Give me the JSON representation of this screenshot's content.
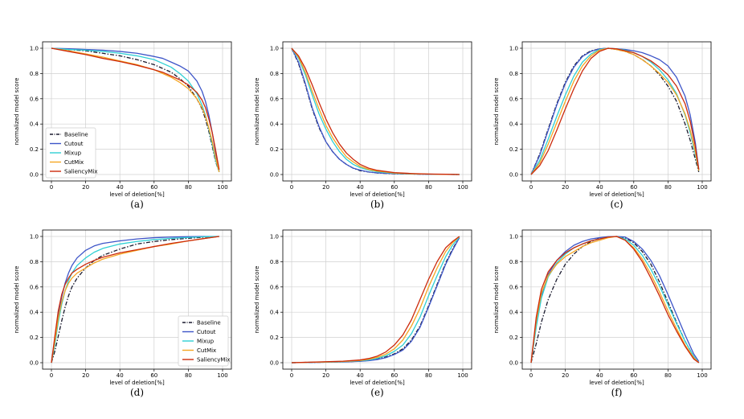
{
  "figure": {
    "colors": {
      "Baseline": "#1a1a2e",
      "Cutout": "#3d55c8",
      "Mixup": "#2fd0d4",
      "CutMix": "#f5a623",
      "SaliencyMix": "#cc2a0c"
    }
  },
  "chart_data": [
    {
      "panel": "a",
      "caption": "(a)",
      "type": "line",
      "xlabel": "level of deletion[%]",
      "ylabel": "normalized model score",
      "xlim": [
        0,
        100
      ],
      "ylim": [
        0,
        1.02
      ],
      "xticks": [
        "0",
        "20",
        "40",
        "60",
        "80",
        "100"
      ],
      "yticks": [
        "0.0",
        "0.2",
        "0.4",
        "0.6",
        "0.8",
        "1.0"
      ],
      "legend": "lower-left",
      "x": [
        0,
        10,
        20,
        30,
        40,
        50,
        60,
        65,
        70,
        75,
        80,
        85,
        88,
        90,
        92,
        94,
        96,
        98
      ],
      "series": [
        {
          "name": "Baseline",
          "style": "dashdot",
          "values": [
            1.0,
            0.99,
            0.98,
            0.96,
            0.94,
            0.91,
            0.87,
            0.84,
            0.81,
            0.76,
            0.7,
            0.6,
            0.52,
            0.44,
            0.34,
            0.22,
            0.1,
            0.02
          ]
        },
        {
          "name": "Cutout",
          "style": "solid",
          "values": [
            1.0,
            0.996,
            0.99,
            0.985,
            0.975,
            0.96,
            0.935,
            0.92,
            0.89,
            0.86,
            0.82,
            0.74,
            0.66,
            0.58,
            0.47,
            0.33,
            0.17,
            0.03
          ]
        },
        {
          "name": "Mixup",
          "style": "solid",
          "values": [
            1.0,
            0.99,
            0.985,
            0.975,
            0.96,
            0.94,
            0.91,
            0.88,
            0.85,
            0.8,
            0.74,
            0.64,
            0.55,
            0.47,
            0.36,
            0.24,
            0.11,
            0.02
          ]
        },
        {
          "name": "CutMix",
          "style": "solid",
          "values": [
            1.0,
            0.98,
            0.955,
            0.93,
            0.9,
            0.87,
            0.83,
            0.8,
            0.77,
            0.73,
            0.68,
            0.6,
            0.53,
            0.46,
            0.37,
            0.26,
            0.13,
            0.02
          ]
        },
        {
          "name": "SaliencyMix",
          "style": "solid",
          "values": [
            1.0,
            0.975,
            0.95,
            0.92,
            0.895,
            0.865,
            0.83,
            0.81,
            0.78,
            0.75,
            0.71,
            0.65,
            0.59,
            0.53,
            0.44,
            0.33,
            0.19,
            0.04
          ]
        }
      ]
    },
    {
      "panel": "b",
      "caption": "(b)",
      "type": "line",
      "xlabel": "level of deletion[%]",
      "ylabel": "normalized model score",
      "xlim": [
        0,
        100
      ],
      "ylim": [
        0,
        1.02
      ],
      "xticks": [
        "0",
        "20",
        "40",
        "60",
        "80",
        "100"
      ],
      "yticks": [
        "0.0",
        "0.2",
        "0.4",
        "0.6",
        "0.8",
        "1.0"
      ],
      "legend": "none",
      "x": [
        0,
        4,
        8,
        12,
        16,
        20,
        24,
        28,
        32,
        36,
        40,
        45,
        50,
        60,
        70,
        80,
        90,
        98
      ],
      "series": [
        {
          "name": "Baseline",
          "style": "dashdot",
          "values": [
            1.0,
            0.88,
            0.71,
            0.52,
            0.37,
            0.26,
            0.18,
            0.12,
            0.08,
            0.05,
            0.03,
            0.02,
            0.012,
            0.006,
            0.004,
            0.002,
            0.001,
            0.0
          ]
        },
        {
          "name": "Cutout",
          "style": "solid",
          "values": [
            1.0,
            0.89,
            0.72,
            0.53,
            0.38,
            0.26,
            0.18,
            0.12,
            0.08,
            0.05,
            0.035,
            0.02,
            0.013,
            0.007,
            0.004,
            0.002,
            0.001,
            0.0
          ]
        },
        {
          "name": "Mixup",
          "style": "solid",
          "values": [
            1.0,
            0.92,
            0.79,
            0.63,
            0.48,
            0.36,
            0.26,
            0.18,
            0.12,
            0.08,
            0.055,
            0.035,
            0.022,
            0.01,
            0.005,
            0.003,
            0.001,
            0.0
          ]
        },
        {
          "name": "CutMix",
          "style": "solid",
          "values": [
            1.0,
            0.93,
            0.81,
            0.66,
            0.52,
            0.39,
            0.29,
            0.21,
            0.14,
            0.1,
            0.065,
            0.04,
            0.027,
            0.012,
            0.006,
            0.003,
            0.001,
            0.0
          ]
        },
        {
          "name": "SaliencyMix",
          "style": "solid",
          "values": [
            1.0,
            0.94,
            0.84,
            0.71,
            0.57,
            0.44,
            0.33,
            0.24,
            0.17,
            0.12,
            0.08,
            0.05,
            0.033,
            0.015,
            0.008,
            0.004,
            0.002,
            0.0
          ]
        }
      ]
    },
    {
      "panel": "c",
      "caption": "(c)",
      "type": "line",
      "xlabel": "level of deletion[%]",
      "ylabel": "normalized model score",
      "xlim": [
        0,
        100
      ],
      "ylim": [
        0,
        1.02
      ],
      "xticks": [
        "0",
        "20",
        "40",
        "60",
        "80",
        "100"
      ],
      "yticks": [
        "0.0",
        "0.2",
        "0.4",
        "0.6",
        "0.8",
        "1.0"
      ],
      "legend": "none",
      "x": [
        0,
        5,
        10,
        15,
        20,
        25,
        30,
        35,
        40,
        45,
        50,
        55,
        60,
        65,
        70,
        75,
        80,
        85,
        90,
        93,
        96,
        98
      ],
      "series": [
        {
          "name": "Baseline",
          "style": "dashdot",
          "values": [
            0.0,
            0.16,
            0.36,
            0.56,
            0.73,
            0.86,
            0.94,
            0.98,
            0.995,
            1.0,
            0.99,
            0.975,
            0.95,
            0.91,
            0.86,
            0.79,
            0.7,
            0.58,
            0.4,
            0.27,
            0.12,
            0.02
          ]
        },
        {
          "name": "Cutout",
          "style": "solid",
          "values": [
            0.0,
            0.15,
            0.35,
            0.55,
            0.72,
            0.85,
            0.935,
            0.975,
            0.995,
            1.0,
            0.995,
            0.99,
            0.98,
            0.965,
            0.94,
            0.91,
            0.86,
            0.77,
            0.62,
            0.47,
            0.25,
            0.04
          ]
        },
        {
          "name": "Mixup",
          "style": "solid",
          "values": [
            0.0,
            0.11,
            0.28,
            0.46,
            0.63,
            0.78,
            0.89,
            0.955,
            0.99,
            1.0,
            0.995,
            0.985,
            0.965,
            0.935,
            0.89,
            0.83,
            0.75,
            0.64,
            0.47,
            0.33,
            0.16,
            0.03
          ]
        },
        {
          "name": "CutMix",
          "style": "solid",
          "values": [
            0.0,
            0.09,
            0.24,
            0.41,
            0.58,
            0.74,
            0.86,
            0.94,
            0.985,
            1.0,
            0.99,
            0.975,
            0.95,
            0.91,
            0.86,
            0.8,
            0.73,
            0.63,
            0.48,
            0.35,
            0.18,
            0.03
          ]
        },
        {
          "name": "SaliencyMix",
          "style": "solid",
          "values": [
            0.0,
            0.07,
            0.19,
            0.35,
            0.52,
            0.68,
            0.82,
            0.92,
            0.975,
            1.0,
            0.995,
            0.98,
            0.965,
            0.935,
            0.9,
            0.85,
            0.79,
            0.7,
            0.56,
            0.42,
            0.22,
            0.04
          ]
        }
      ]
    },
    {
      "panel": "d",
      "caption": "(d)",
      "type": "line",
      "xlabel": "level of deletion[%]",
      "ylabel": "normalized model score",
      "xlim": [
        0,
        100
      ],
      "ylim": [
        0,
        1.02
      ],
      "xticks": [
        "0",
        "20",
        "40",
        "60",
        "80",
        "100"
      ],
      "yticks": [
        "0.0",
        "0.2",
        "0.4",
        "0.6",
        "0.8",
        "1.0"
      ],
      "legend": "lower-right",
      "x": [
        0,
        2,
        4,
        6,
        8,
        10,
        12,
        15,
        20,
        25,
        30,
        40,
        50,
        60,
        70,
        80,
        90,
        98
      ],
      "series": [
        {
          "name": "Baseline",
          "style": "dashdot",
          "values": [
            0.0,
            0.09,
            0.21,
            0.33,
            0.44,
            0.53,
            0.6,
            0.67,
            0.75,
            0.81,
            0.85,
            0.9,
            0.94,
            0.96,
            0.975,
            0.985,
            0.995,
            1.0
          ]
        },
        {
          "name": "Cutout",
          "style": "solid",
          "values": [
            0.0,
            0.18,
            0.38,
            0.52,
            0.63,
            0.71,
            0.77,
            0.83,
            0.89,
            0.925,
            0.945,
            0.965,
            0.98,
            0.99,
            0.995,
            0.998,
            1.0,
            1.0
          ]
        },
        {
          "name": "Mixup",
          "style": "solid",
          "values": [
            0.0,
            0.14,
            0.32,
            0.46,
            0.57,
            0.65,
            0.71,
            0.77,
            0.83,
            0.875,
            0.905,
            0.94,
            0.96,
            0.975,
            0.985,
            0.992,
            0.998,
            1.0
          ]
        },
        {
          "name": "CutMix",
          "style": "solid",
          "values": [
            0.0,
            0.17,
            0.35,
            0.48,
            0.57,
            0.63,
            0.67,
            0.71,
            0.75,
            0.79,
            0.82,
            0.86,
            0.89,
            0.92,
            0.94,
            0.965,
            0.985,
            1.0
          ]
        },
        {
          "name": "SaliencyMix",
          "style": "solid",
          "values": [
            0.0,
            0.21,
            0.41,
            0.54,
            0.62,
            0.67,
            0.71,
            0.74,
            0.78,
            0.81,
            0.835,
            0.87,
            0.895,
            0.92,
            0.945,
            0.965,
            0.985,
            1.0
          ]
        }
      ]
    },
    {
      "panel": "e",
      "caption": "(e)",
      "type": "line",
      "xlabel": "level of deletion[%]",
      "ylabel": "normalized model score",
      "xlim": [
        0,
        100
      ],
      "ylim": [
        0,
        1.02
      ],
      "xticks": [
        "0",
        "20",
        "40",
        "60",
        "80",
        "100"
      ],
      "yticks": [
        "0.0",
        "0.2",
        "0.4",
        "0.6",
        "0.8",
        "1.0"
      ],
      "legend": "none",
      "x": [
        0,
        10,
        20,
        30,
        40,
        45,
        50,
        55,
        60,
        65,
        70,
        75,
        80,
        85,
        90,
        94,
        98
      ],
      "series": [
        {
          "name": "Baseline",
          "style": "dashdot",
          "values": [
            0.0,
            0.002,
            0.004,
            0.007,
            0.012,
            0.018,
            0.028,
            0.045,
            0.07,
            0.11,
            0.18,
            0.29,
            0.45,
            0.62,
            0.79,
            0.9,
            0.99
          ]
        },
        {
          "name": "Cutout",
          "style": "solid",
          "values": [
            0.0,
            0.002,
            0.004,
            0.006,
            0.011,
            0.016,
            0.025,
            0.04,
            0.065,
            0.1,
            0.17,
            0.28,
            0.44,
            0.61,
            0.78,
            0.89,
            0.99
          ]
        },
        {
          "name": "Mixup",
          "style": "solid",
          "values": [
            0.0,
            0.003,
            0.005,
            0.008,
            0.015,
            0.022,
            0.035,
            0.055,
            0.09,
            0.14,
            0.23,
            0.36,
            0.53,
            0.69,
            0.84,
            0.93,
            0.995
          ]
        },
        {
          "name": "CutMix",
          "style": "solid",
          "values": [
            0.0,
            0.003,
            0.006,
            0.01,
            0.018,
            0.027,
            0.042,
            0.068,
            0.11,
            0.18,
            0.29,
            0.43,
            0.6,
            0.75,
            0.88,
            0.95,
            1.0
          ]
        },
        {
          "name": "SaliencyMix",
          "style": "solid",
          "values": [
            0.0,
            0.004,
            0.008,
            0.012,
            0.022,
            0.033,
            0.052,
            0.085,
            0.14,
            0.22,
            0.34,
            0.5,
            0.66,
            0.8,
            0.91,
            0.96,
            1.0
          ]
        }
      ]
    },
    {
      "panel": "f",
      "caption": "(f)",
      "type": "line",
      "xlabel": "level of deletion[%]",
      "ylabel": "normalized model score",
      "xlim": [
        0,
        100
      ],
      "ylim": [
        0,
        1.02
      ],
      "xticks": [
        "0",
        "20",
        "40",
        "60",
        "80",
        "100"
      ],
      "yticks": [
        "0.0",
        "0.2",
        "0.4",
        "0.6",
        "0.8",
        "1.0"
      ],
      "legend": "none",
      "x": [
        0,
        3,
        6,
        10,
        15,
        20,
        25,
        30,
        35,
        40,
        45,
        50,
        55,
        60,
        65,
        70,
        75,
        80,
        85,
        90,
        95,
        98
      ],
      "series": [
        {
          "name": "Baseline",
          "style": "dashdot",
          "values": [
            0.0,
            0.15,
            0.32,
            0.5,
            0.66,
            0.78,
            0.86,
            0.92,
            0.96,
            0.985,
            0.995,
            1.0,
            0.99,
            0.95,
            0.88,
            0.78,
            0.64,
            0.48,
            0.32,
            0.17,
            0.05,
            0.0
          ]
        },
        {
          "name": "Cutout",
          "style": "solid",
          "values": [
            0.0,
            0.3,
            0.53,
            0.7,
            0.81,
            0.88,
            0.93,
            0.96,
            0.98,
            0.99,
            0.998,
            1.0,
            0.995,
            0.96,
            0.9,
            0.81,
            0.69,
            0.54,
            0.38,
            0.22,
            0.07,
            0.01
          ]
        },
        {
          "name": "Mixup",
          "style": "solid",
          "values": [
            0.0,
            0.28,
            0.51,
            0.68,
            0.79,
            0.86,
            0.91,
            0.94,
            0.965,
            0.98,
            0.995,
            1.0,
            0.98,
            0.93,
            0.85,
            0.74,
            0.61,
            0.46,
            0.31,
            0.17,
            0.05,
            0.0
          ]
        },
        {
          "name": "CutMix",
          "style": "solid",
          "values": [
            0.0,
            0.33,
            0.55,
            0.69,
            0.78,
            0.84,
            0.88,
            0.92,
            0.95,
            0.97,
            0.99,
            1.0,
            0.97,
            0.91,
            0.82,
            0.7,
            0.56,
            0.41,
            0.27,
            0.14,
            0.04,
            0.0
          ]
        },
        {
          "name": "SaliencyMix",
          "style": "solid",
          "values": [
            0.0,
            0.36,
            0.58,
            0.72,
            0.81,
            0.87,
            0.91,
            0.94,
            0.965,
            0.98,
            0.995,
            1.0,
            0.97,
            0.9,
            0.8,
            0.67,
            0.53,
            0.38,
            0.25,
            0.13,
            0.03,
            0.0
          ]
        }
      ]
    }
  ]
}
